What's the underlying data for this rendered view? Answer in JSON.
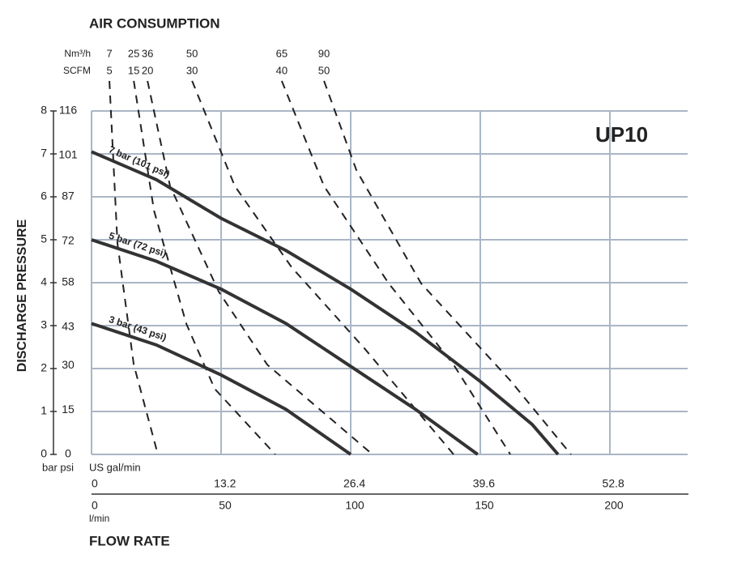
{
  "chart_data": {
    "type": "line",
    "title": "UP10",
    "top_axis_title": "AIR CONSUMPTION",
    "y_label": "DISCHARGE PRESSURE",
    "x_label": "FLOW RATE",
    "y_units": "bar psi",
    "x2_units": "US gal/min",
    "x_units": "l/min",
    "air_units_nm3h": "Nm³/h",
    "air_units_scfm": "SCFM",
    "xlim": [
      0,
      230
    ],
    "xticks": [
      0,
      50,
      100,
      150,
      200
    ],
    "x2lim": [
      0,
      60.8
    ],
    "x2ticks": [
      0,
      13.2,
      26.4,
      39.6,
      52.8
    ],
    "ylim": [
      0,
      8
    ],
    "yticks": [
      0,
      1,
      2,
      3,
      4,
      5,
      6,
      7,
      8
    ],
    "y2lim": [
      0,
      116
    ],
    "y2ticks": [
      0,
      15,
      30,
      43,
      58,
      72,
      87,
      101,
      116
    ],
    "grid": true,
    "series": [
      {
        "name": "7 bar (101 psi)",
        "color": "#333333",
        "x": [
          0,
          25,
          50,
          75,
          100,
          125,
          150,
          170,
          180
        ],
        "values": [
          7.05,
          6.4,
          5.5,
          4.75,
          3.85,
          2.85,
          1.7,
          0.7,
          0
        ]
      },
      {
        "name": "5 bar (72 psi)",
        "color": "#333333",
        "x": [
          0,
          25,
          50,
          75,
          100,
          125,
          149
        ],
        "values": [
          5,
          4.5,
          3.85,
          3.05,
          2.05,
          1.05,
          0
        ]
      },
      {
        "name": "3 bar (43 psi)",
        "color": "#333333",
        "x": [
          0,
          25,
          50,
          75,
          100
        ],
        "values": [
          3.05,
          2.55,
          1.85,
          1.05,
          0
        ]
      }
    ],
    "air_consumption": [
      {
        "nm3h": 7,
        "scfm": 5,
        "x": [
          6.9,
          10,
          16.3,
          25.6
        ],
        "values": [
          8.7,
          4.92,
          2.09,
          0
        ]
      },
      {
        "nm3h": 25,
        "scfm": 15,
        "x": [
          16.3,
          24.1,
          36.6,
          47.5,
          70.9
        ],
        "values": [
          8.7,
          5.68,
          3.04,
          1.53,
          0
        ]
      },
      {
        "nm3h": 36,
        "scfm": 20,
        "x": [
          21.6,
          30.3,
          49.1,
          67.8,
          108.4
        ],
        "values": [
          8.7,
          6.25,
          3.79,
          2.09,
          0
        ]
      },
      {
        "nm3h": 50,
        "scfm": 30,
        "x": [
          38.8,
          55.3,
          77.2,
          105.3,
          139.7
        ],
        "values": [
          8.7,
          6.25,
          4.36,
          2.47,
          0
        ]
      },
      {
        "nm3h": 65,
        "scfm": 40,
        "x": [
          73.4,
          89.7,
          114.7,
          139.7,
          161.6
        ],
        "values": [
          8.7,
          6.25,
          3.98,
          2.09,
          0
        ]
      },
      {
        "nm3h": 90,
        "scfm": 50,
        "x": [
          89.7,
          102.2,
          127.2,
          161.6,
          185
        ],
        "values": [
          8.7,
          6.62,
          3.98,
          1.72,
          0
        ]
      }
    ]
  }
}
